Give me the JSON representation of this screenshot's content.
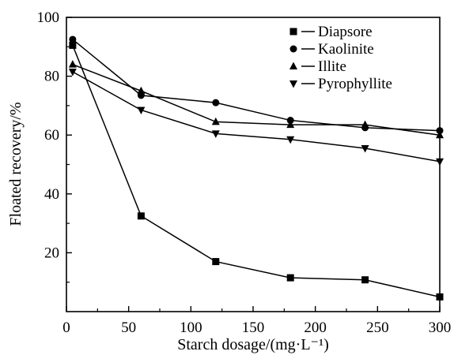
{
  "chart_data": {
    "type": "line",
    "xlabel": "Starch dosage/(mg·L⁻¹)",
    "ylabel": "Floated recovery/%",
    "xlim": [
      0,
      300
    ],
    "ylim": [
      0,
      100
    ],
    "x_ticks": [
      0,
      50,
      100,
      150,
      200,
      250,
      300
    ],
    "y_ticks": [
      20,
      40,
      60,
      80,
      100
    ],
    "grid": false,
    "legend_position": "top-right",
    "series": [
      {
        "name": "Diapsore",
        "marker": "square",
        "x": [
          5,
          60,
          120,
          180,
          240,
          300
        ],
        "values": [
          90.5,
          32.5,
          17,
          11.5,
          10.8,
          5
        ]
      },
      {
        "name": "Kaolinite",
        "marker": "circle",
        "x": [
          5,
          60,
          120,
          180,
          240,
          300
        ],
        "values": [
          92.5,
          73.5,
          71,
          65,
          62.5,
          61.5
        ]
      },
      {
        "name": "Illite",
        "marker": "triangle-up",
        "x": [
          5,
          60,
          120,
          180,
          240,
          300
        ],
        "values": [
          84,
          75,
          64.5,
          63.5,
          63.5,
          60
        ]
      },
      {
        "name": "Pyrophyllite",
        "marker": "triangle-down",
        "x": [
          5,
          60,
          120,
          180,
          240,
          300
        ],
        "values": [
          81.5,
          68.5,
          60.5,
          58.5,
          55.5,
          51
        ]
      }
    ]
  }
}
